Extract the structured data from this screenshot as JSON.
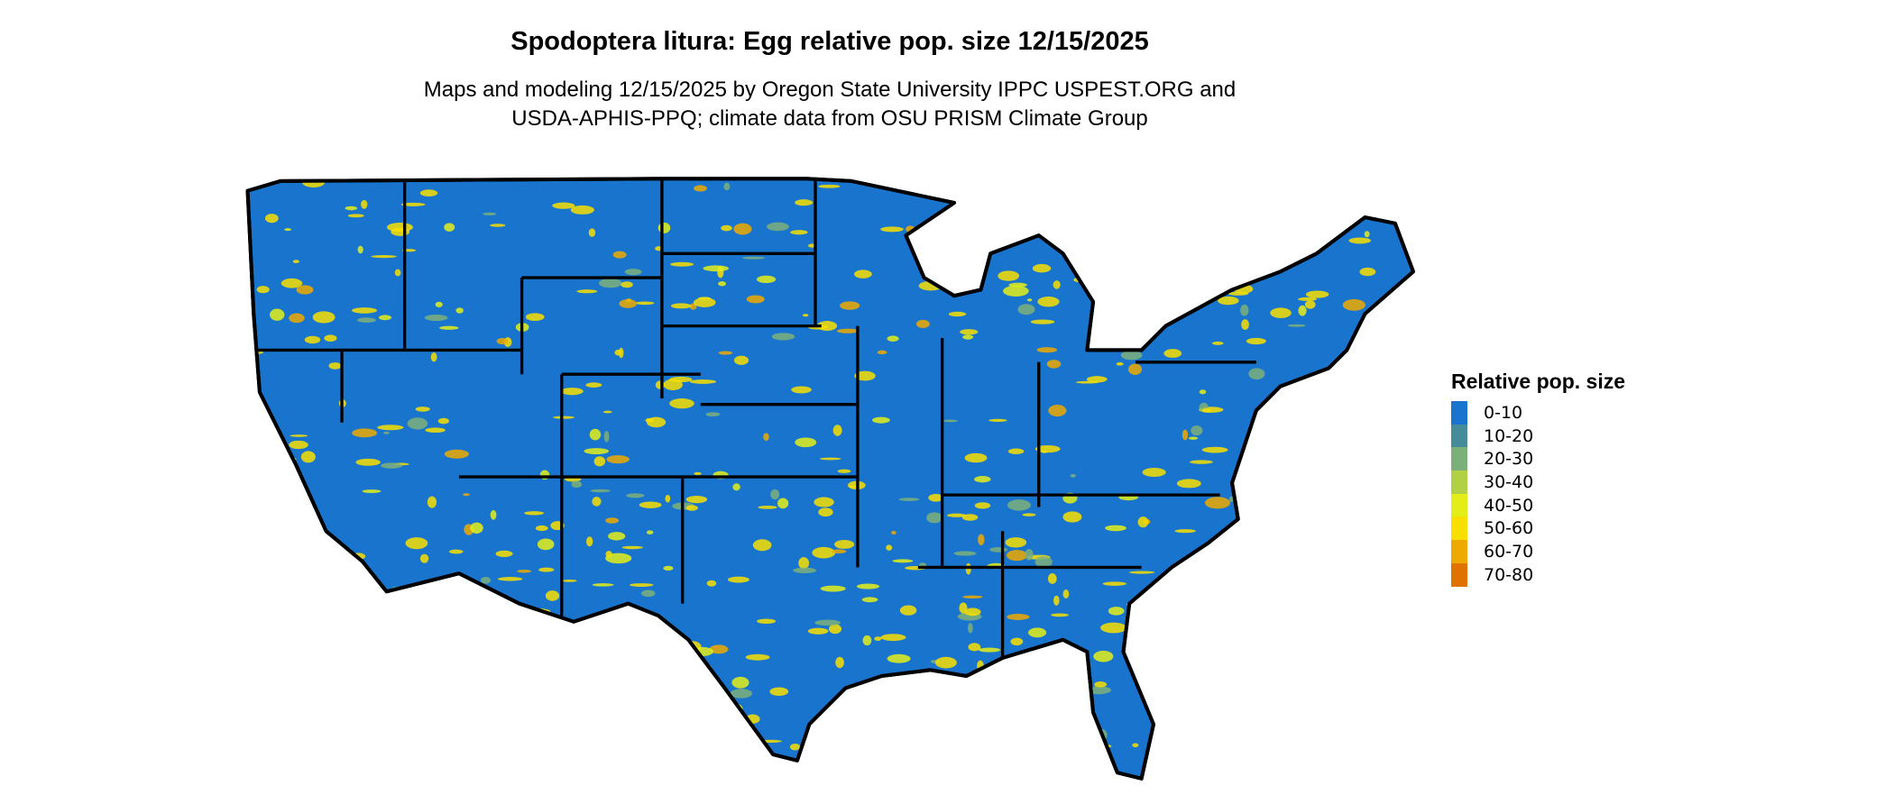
{
  "title": "Spodoptera litura: Egg relative pop. size 12/15/2025",
  "subtitle_line1": "Maps and modeling 12/15/2025 by Oregon State University IPPC USPEST.ORG and",
  "subtitle_line2": "USDA-APHIS-PPQ; climate data from OSU PRISM Climate Group",
  "map": {
    "region": "Contiguous United States",
    "dominant_class": "0-10",
    "background_color": "#1874CD"
  },
  "legend": {
    "title": "Relative pop. size",
    "items": [
      {
        "label": "0-10",
        "color": "#1874CD"
      },
      {
        "label": "10-20",
        "color": "#458B9A"
      },
      {
        "label": "20-30",
        "color": "#7CB07A"
      },
      {
        "label": "30-40",
        "color": "#B2D045"
      },
      {
        "label": "40-50",
        "color": "#E3EE18"
      },
      {
        "label": "50-60",
        "color": "#F8DF00"
      },
      {
        "label": "60-70",
        "color": "#EEAA00"
      },
      {
        "label": "70-80",
        "color": "#E07300"
      }
    ]
  }
}
